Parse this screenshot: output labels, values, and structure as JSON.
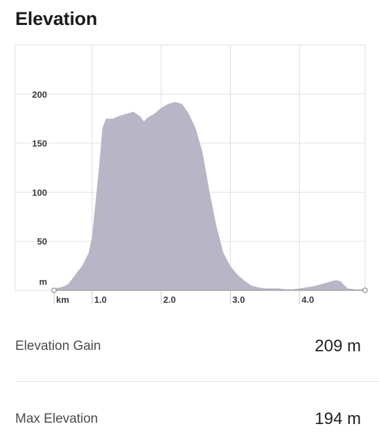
{
  "section": {
    "title": "Elevation"
  },
  "chart_data": {
    "type": "area",
    "xlabel": "",
    "ylabel": "",
    "x_unit_label": "km",
    "y_unit_label": "m",
    "xlim": [
      0.45,
      4.95
    ],
    "ylim": [
      0,
      250
    ],
    "x_ticks": [
      {
        "value": 1.0,
        "label": "1.0"
      },
      {
        "value": 2.0,
        "label": "2.0"
      },
      {
        "value": 3.0,
        "label": "3.0"
      },
      {
        "value": 4.0,
        "label": "4.0"
      }
    ],
    "y_ticks": [
      {
        "value": 50,
        "label": "50"
      },
      {
        "value": 100,
        "label": "100"
      },
      {
        "value": 150,
        "label": "150"
      },
      {
        "value": 200,
        "label": "200"
      }
    ],
    "grid": true,
    "fill_color": "#b8b6c6",
    "series": [
      {
        "x": [
          0.45,
          0.55,
          0.65,
          0.75,
          0.8,
          0.85,
          0.95,
          1.0,
          1.05,
          1.1,
          1.15,
          1.2,
          1.3,
          1.4,
          1.5,
          1.6,
          1.7,
          1.75,
          1.8,
          1.9,
          2.0,
          2.1,
          2.2,
          2.3,
          2.4,
          2.5,
          2.6,
          2.7,
          2.8,
          2.9,
          3.0,
          3.1,
          3.2,
          3.3,
          3.4,
          3.5,
          3.6,
          3.7,
          3.8,
          3.9,
          4.0,
          4.1,
          4.2,
          4.3,
          4.35,
          4.4,
          4.5,
          4.55,
          4.6,
          4.65,
          4.7,
          4.8,
          4.95
        ],
        "y": [
          2,
          3,
          6,
          15,
          20,
          24,
          38,
          55,
          90,
          125,
          165,
          175,
          175,
          178,
          180,
          182,
          177,
          172,
          176,
          180,
          186,
          190,
          192,
          190,
          180,
          165,
          140,
          100,
          65,
          38,
          25,
          16,
          10,
          5,
          3,
          2,
          2,
          2,
          1,
          1,
          2,
          3,
          4,
          6,
          7,
          8,
          10,
          10,
          9,
          5,
          2,
          1,
          1
        ]
      }
    ]
  },
  "stats": [
    {
      "label": "Elevation Gain",
      "value": "209 m"
    },
    {
      "label": "Max Elevation",
      "value": "194 m"
    }
  ]
}
